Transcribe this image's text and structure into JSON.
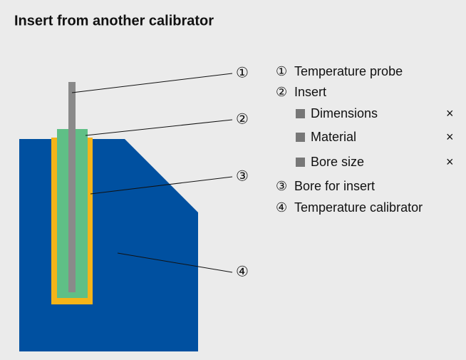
{
  "header": {
    "title": "Insert from another calibrator"
  },
  "callouts": [
    "①",
    "②",
    "③",
    "④"
  ],
  "legend": {
    "items": [
      {
        "marker": "①",
        "text": "Temperature probe"
      },
      {
        "marker": "②",
        "text": "Insert"
      },
      {
        "marker": "③",
        "text": "Bore for insert"
      },
      {
        "marker": "④",
        "text": "Temperature calibrator"
      }
    ],
    "sub_items": [
      {
        "text": "Dimensions",
        "mark": "×"
      },
      {
        "text": "Material",
        "mark": "×"
      },
      {
        "text": "Bore size",
        "mark": "×"
      }
    ]
  }
}
